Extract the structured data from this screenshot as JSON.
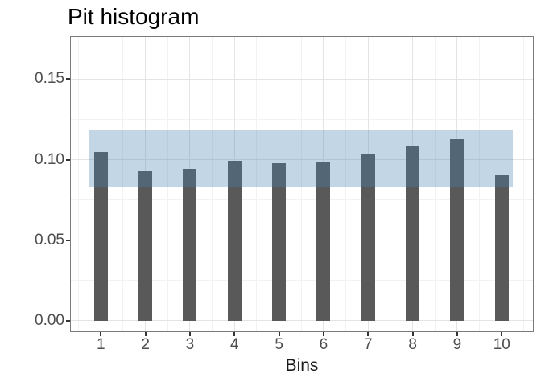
{
  "title": "Pit histogram",
  "chart_data": {
    "type": "bar",
    "title": "Pit histogram",
    "xlabel": "Bins",
    "ylabel": "",
    "categories": [
      "1",
      "2",
      "3",
      "4",
      "5",
      "6",
      "7",
      "8",
      "9",
      "10"
    ],
    "values": [
      0.105,
      0.093,
      0.0945,
      0.0995,
      0.098,
      0.0985,
      0.104,
      0.1085,
      0.1125,
      0.0905
    ],
    "band": {
      "lower": 0.083,
      "upper": 0.118
    },
    "y_ticks": [
      {
        "label": "0.00",
        "value": 0.0
      },
      {
        "label": "0.05",
        "value": 0.05
      },
      {
        "label": "0.10",
        "value": 0.1
      },
      {
        "label": "0.15",
        "value": 0.15
      }
    ],
    "y_minor_ticks": [
      0.025,
      0.075,
      0.125,
      0.175
    ],
    "ylim": [
      -0.007,
      0.177
    ],
    "grid": true,
    "legend": false
  },
  "colors": {
    "bar": "#595959",
    "band_base": "#4682B4",
    "band_alpha": 0.33,
    "grid_major": "#e4e4e4",
    "grid_minor": "#f2f2f2",
    "panel_border": "#7a7a7a",
    "axis_text": "#4d4d4d",
    "tick_mark": "#333333",
    "title_text": "#000000",
    "axis_title_text": "#1a1a1a"
  }
}
